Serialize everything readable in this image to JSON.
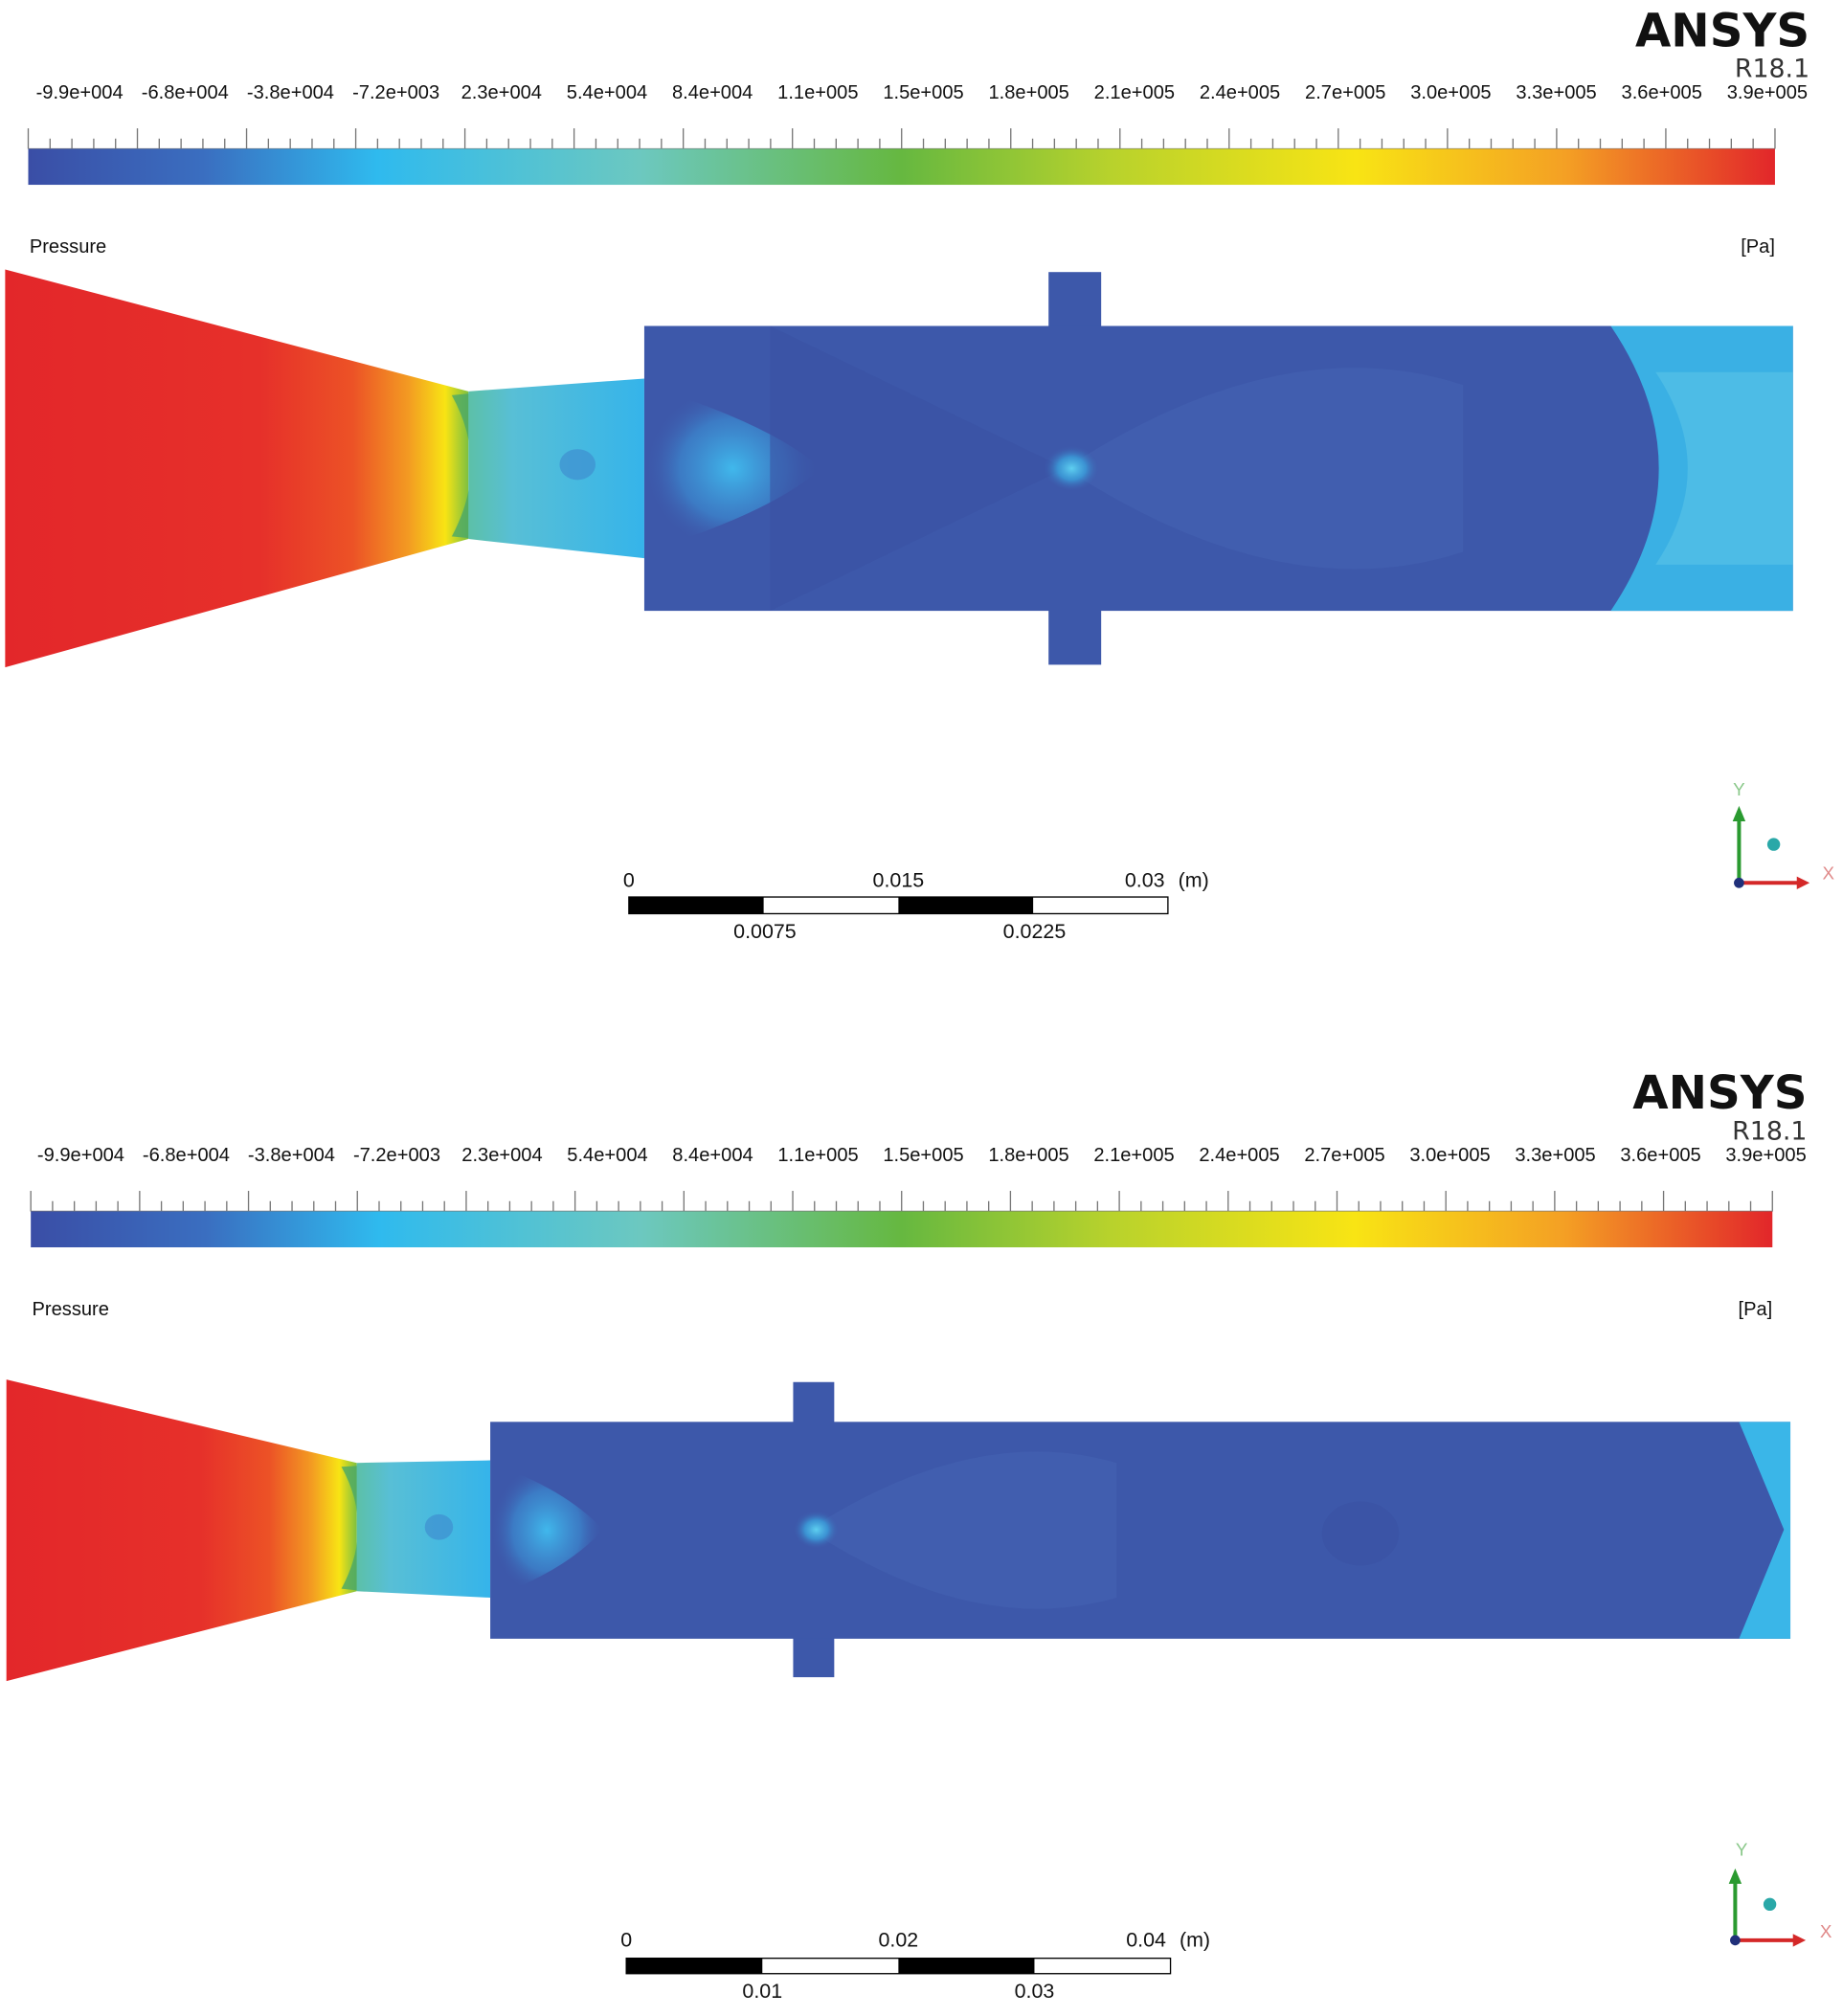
{
  "panels": [
    {
      "logo": "ANSYS",
      "version": "R18.1",
      "legend": {
        "labels": [
          "-9.9e+004",
          "-6.8e+004",
          "-3.8e+004",
          "-7.2e+003",
          "2.3e+004",
          "5.4e+004",
          "8.4e+004",
          "1.1e+005",
          "1.5e+005",
          "1.8e+005",
          "2.1e+005",
          "2.4e+005",
          "2.7e+005",
          "3.0e+005",
          "3.3e+005",
          "3.6e+005",
          "3.9e+005"
        ],
        "title": "Pressure",
        "unit": "[Pa]"
      },
      "scale_bar": {
        "top_labels": [
          "0",
          "0.015",
          "0.03"
        ],
        "unit": "(m)",
        "bottom_labels": [
          "0.0075",
          "0.0225"
        ]
      },
      "axes": {
        "y": "Y",
        "x": "X"
      }
    },
    {
      "logo": "ANSYS",
      "version": "R18.1",
      "legend": {
        "labels": [
          "-9.9e+004",
          "-6.8e+004",
          "-3.8e+004",
          "-7.2e+003",
          "2.3e+004",
          "5.4e+004",
          "8.4e+004",
          "1.1e+005",
          "1.5e+005",
          "1.8e+005",
          "2.1e+005",
          "2.4e+005",
          "2.7e+005",
          "3.0e+005",
          "3.3e+005",
          "3.6e+005",
          "3.9e+005"
        ],
        "title": "Pressure",
        "unit": "[Pa]"
      },
      "scale_bar": {
        "top_labels": [
          "0",
          "0.02",
          "0.04"
        ],
        "unit": "(m)",
        "bottom_labels": [
          "0.01",
          "0.03"
        ]
      },
      "axes": {
        "y": "Y",
        "x": "X"
      }
    }
  ]
}
